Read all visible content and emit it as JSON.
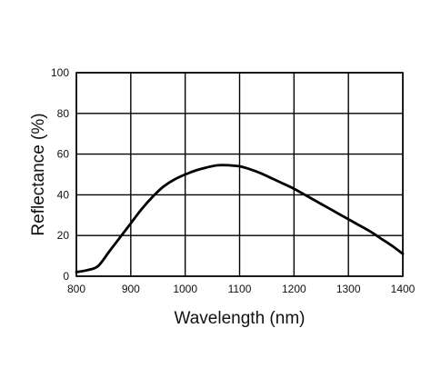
{
  "chart_data": {
    "type": "line",
    "title": "",
    "xlabel": "Wavelength (nm)",
    "ylabel": "Reflectance (%)",
    "xlim": [
      800,
      1400
    ],
    "ylim": [
      0,
      100
    ],
    "grid": true,
    "x_ticks": [
      "800",
      "900",
      "1000",
      "1100",
      "1200",
      "1300",
      "1400"
    ],
    "y_ticks": [
      "0",
      "20",
      "40",
      "60",
      "80",
      "100"
    ],
    "series": [
      {
        "color": "#000000",
        "x": [
          800,
          820,
          840,
          860,
          880,
          900,
          920,
          940,
          960,
          980,
          1000,
          1020,
          1040,
          1060,
          1080,
          1100,
          1120,
          1140,
          1160,
          1180,
          1200,
          1220,
          1240,
          1260,
          1280,
          1300,
          1320,
          1340,
          1360,
          1380,
          1400
        ],
        "y": [
          2,
          3,
          5,
          12,
          19,
          26,
          33,
          39,
          44,
          47.5,
          50,
          52,
          53.5,
          54.5,
          54.5,
          54,
          52.5,
          50.5,
          48,
          45.5,
          43,
          40,
          37,
          34,
          31,
          28,
          25,
          22,
          18.5,
          15,
          11
        ]
      }
    ]
  }
}
